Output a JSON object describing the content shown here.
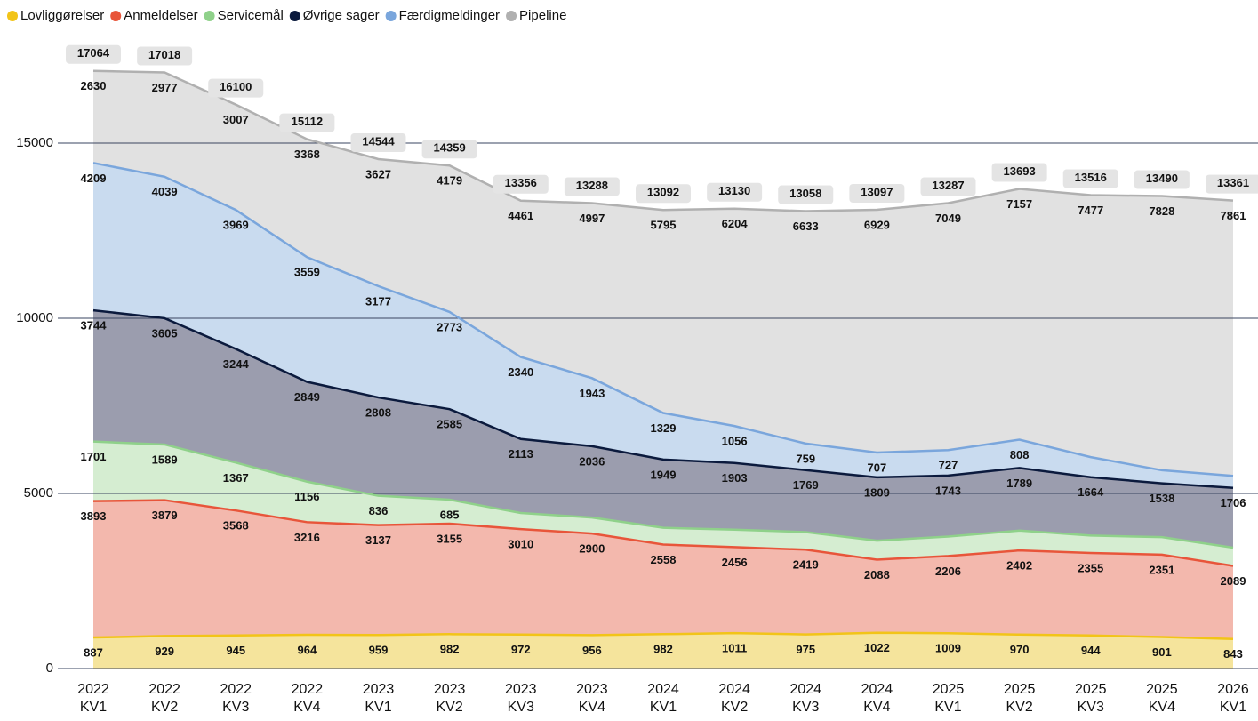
{
  "chart_data": {
    "type": "stacked_area",
    "categories": [
      [
        "2022",
        "KV1"
      ],
      [
        "2022",
        "KV2"
      ],
      [
        "2022",
        "KV3"
      ],
      [
        "2022",
        "KV4"
      ],
      [
        "2023",
        "KV1"
      ],
      [
        "2023",
        "KV2"
      ],
      [
        "2023",
        "KV3"
      ],
      [
        "2023",
        "KV4"
      ],
      [
        "2024",
        "KV1"
      ],
      [
        "2024",
        "KV2"
      ],
      [
        "2024",
        "KV3"
      ],
      [
        "2024",
        "KV4"
      ],
      [
        "2025",
        "KV1"
      ],
      [
        "2025",
        "KV2"
      ],
      [
        "2025",
        "KV3"
      ],
      [
        "2025",
        "KV4"
      ],
      [
        "2026",
        "KV1"
      ]
    ],
    "series": [
      {
        "name": "Lovliggørelser",
        "color": "#f2c418",
        "fill": "#f5e49c",
        "values": [
          887,
          929,
          945,
          964,
          959,
          982,
          972,
          956,
          982,
          1011,
          975,
          1022,
          1009,
          970,
          944,
          901,
          843
        ],
        "value_labels": [
          887,
          929,
          945,
          964,
          959,
          982,
          972,
          956,
          982,
          1011,
          975,
          1022,
          1009,
          970,
          944,
          901,
          843
        ]
      },
      {
        "name": "Anmeldelser",
        "color": "#e8553a",
        "fill": "#f3b8ad",
        "values": [
          3893,
          3879,
          3568,
          3216,
          3137,
          3155,
          3010,
          2900,
          2558,
          2456,
          2419,
          2088,
          2206,
          2402,
          2355,
          2351,
          2089
        ],
        "value_labels": [
          3893,
          3879,
          3568,
          3216,
          3137,
          3155,
          3010,
          2900,
          2558,
          2456,
          2419,
          2088,
          2206,
          2402,
          2355,
          2351,
          2089
        ]
      },
      {
        "name": "Servicemål",
        "color": "#8fd18a",
        "fill": "#d5edd1",
        "values": [
          1701,
          1589,
          1367,
          1156,
          836,
          685,
          460,
          456,
          479,
          500,
          503,
          542,
          553,
          567,
          500,
          500,
          520
        ],
        "value_labels": [
          1701,
          1589,
          1367,
          1156,
          836,
          685,
          null,
          null,
          null,
          null,
          null,
          null,
          null,
          null,
          null,
          null,
          null
        ]
      },
      {
        "name": "Øvrige sager",
        "color": "#0b1a3d",
        "fill": "#9b9dae",
        "values": [
          3744,
          3605,
          3244,
          2849,
          2808,
          2585,
          2113,
          2036,
          1949,
          1903,
          1769,
          1809,
          1743,
          1789,
          1664,
          1538,
          1706
        ],
        "value_labels": [
          3744,
          3605,
          3244,
          2849,
          2808,
          2585,
          2113,
          2036,
          1949,
          1903,
          1769,
          1809,
          1743,
          1789,
          1664,
          1538,
          1706
        ]
      },
      {
        "name": "Færdigmeldinger",
        "color": "#7aa6dc",
        "fill": "#c9dbef",
        "values": [
          4209,
          4039,
          3969,
          3559,
          3177,
          2773,
          2340,
          1943,
          1329,
          1056,
          759,
          707,
          727,
          808,
          575,
          372,
          342
        ],
        "value_labels": [
          4209,
          4039,
          3969,
          3559,
          3177,
          2773,
          2340,
          1943,
          1329,
          1056,
          759,
          707,
          727,
          808,
          null,
          null,
          null
        ]
      },
      {
        "name": "Pipeline",
        "color": "#b0b0b0",
        "fill": "#e1e1e1",
        "values": [
          2630,
          2977,
          3007,
          3368,
          3627,
          4179,
          4461,
          4997,
          5795,
          6204,
          6633,
          6929,
          7049,
          7157,
          7477,
          7828,
          7861
        ],
        "value_labels": [
          2630,
          2977,
          3007,
          3368,
          3627,
          4179,
          4461,
          4997,
          5795,
          6204,
          6633,
          6929,
          7049,
          7157,
          7477,
          7828,
          7861
        ]
      }
    ],
    "totals": [
      17064,
      17018,
      16100,
      15112,
      14544,
      14359,
      13356,
      13288,
      13092,
      13130,
      13058,
      13097,
      13287,
      13693,
      13516,
      13490,
      13361
    ],
    "ylim": [
      0,
      17800
    ],
    "yticks": [
      0,
      5000,
      10000,
      15000
    ],
    "grid": true,
    "legend": "top-left"
  }
}
